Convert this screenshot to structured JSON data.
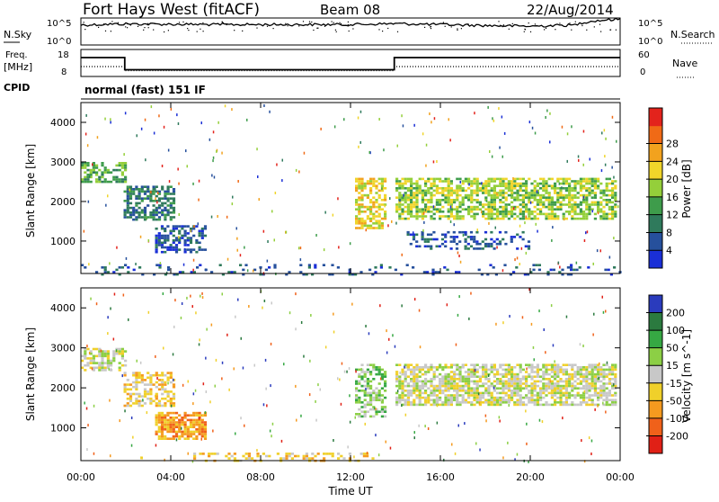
{
  "header": {
    "station": "Fort Hays West (fitACF)",
    "beam": "Beam 08",
    "date": "22/Aug/2014"
  },
  "top_panels": {
    "nsky_label": "N.Sky",
    "nsky_ticks": [
      "10^5",
      "10^0"
    ],
    "nsearch_label": "N.Search",
    "nsearch_ticks": [
      "10^5",
      "10^0"
    ],
    "freq_label": "Freq.",
    "freq_unit": "[MHz]",
    "freq_ticks": [
      "18",
      "8"
    ],
    "nave_label": "Nave",
    "nave_ticks": [
      "60",
      "0"
    ],
    "cpid_label": "CPID",
    "cpid_value": "normal (fast) 151 IF"
  },
  "panels": {
    "power_ylabel": "Slant Range [km]",
    "velocity_ylabel": "Slant Range [km]",
    "y_ticks": [
      "1000",
      "2000",
      "3000",
      "4000"
    ],
    "x_ticks": [
      "00:00",
      "04:00",
      "08:00",
      "12:00",
      "16:00",
      "20:00",
      "00:00"
    ],
    "xlabel": "Time UT"
  },
  "colorbars": {
    "power": {
      "label": "Power [dB]",
      "ticks": [
        "4",
        "8",
        "12",
        "16",
        "20",
        "24",
        "28"
      ],
      "colors": [
        "#1a2fd6",
        "#26509c",
        "#2f7a5c",
        "#3e9c4b",
        "#94cf3a",
        "#f0d52a",
        "#f2a21e",
        "#f06a16",
        "#e3231c"
      ]
    },
    "velocity": {
      "label": "Velocity [m s^-1]",
      "ticks": [
        "200",
        "100",
        "50",
        "15",
        "-15",
        "-50",
        "-100",
        "-200"
      ],
      "colors": [
        "#2a3bbd",
        "#2b7a3f",
        "#36a843",
        "#8ccf45",
        "#c8c8c8",
        "#f0d02a",
        "#f59a1f",
        "#f0611a",
        "#e02016"
      ]
    }
  },
  "chart_data": [
    {
      "type": "line",
      "name": "N.Sky / N.Search",
      "x_range_hours": [
        0,
        24
      ],
      "y_scale": "log",
      "ylim": [
        1,
        100000
      ],
      "x": [
        0,
        2,
        4,
        6,
        8,
        10,
        12,
        14,
        16,
        18,
        20,
        22,
        24
      ],
      "y": [
        5000,
        8000,
        7000,
        6000,
        6000,
        6000,
        6000,
        9000,
        6000,
        4000,
        3000,
        5000,
        60000
      ]
    },
    {
      "type": "line",
      "name": "Freq. / Nave",
      "x_range_hours": [
        0,
        24
      ],
      "freq_ylim": [
        8,
        18
      ],
      "freq_steps": [
        {
          "start": 0,
          "end": 1.95,
          "mhz": 15
        },
        {
          "start": 1.95,
          "end": 13.95,
          "mhz": 10.5
        },
        {
          "start": 13.95,
          "end": 24,
          "mhz": 15
        }
      ],
      "nave_ylim": [
        0,
        60
      ],
      "nave_steps": [
        {
          "start": 0,
          "end": 1.95,
          "value": 22
        },
        {
          "start": 1.95,
          "end": 13.95,
          "value": 13
        },
        {
          "start": 13.95,
          "end": 24,
          "value": 22
        }
      ]
    },
    {
      "type": "heatmap",
      "name": "Power",
      "x_range_hours": [
        0,
        24
      ],
      "ylim_km": [
        180,
        4500
      ],
      "regions": [
        {
          "t0": 0.0,
          "t1": 1.95,
          "r0": 2500,
          "r1": 3000,
          "level": 3,
          "density": 0.55
        },
        {
          "t0": 1.9,
          "t1": 4.2,
          "r0": 1550,
          "r1": 2400,
          "level": 2,
          "density": 0.6
        },
        {
          "t0": 3.3,
          "t1": 5.6,
          "r0": 700,
          "r1": 1400,
          "level": 1,
          "density": 0.55
        },
        {
          "t0": 12.2,
          "t1": 13.6,
          "r0": 1300,
          "r1": 2600,
          "level": 5,
          "density": 0.6
        },
        {
          "t0": 14.0,
          "t1": 23.8,
          "r0": 1550,
          "r1": 2600,
          "level": 4,
          "density": 0.65
        },
        {
          "t0": 14.5,
          "t1": 20.0,
          "r0": 800,
          "r1": 1250,
          "level": 1,
          "density": 0.3
        },
        {
          "t0": 0.0,
          "t1": 24.0,
          "r0": 180,
          "r1": 420,
          "level": 1,
          "density": 0.12
        }
      ]
    },
    {
      "type": "heatmap",
      "name": "Velocity",
      "x_range_hours": [
        0,
        24
      ],
      "ylim_km": [
        180,
        4500
      ],
      "regions": [
        {
          "t0": 0.0,
          "t1": 1.95,
          "r0": 2450,
          "r1": 3000,
          "level": 4,
          "density": 0.5
        },
        {
          "t0": 1.9,
          "t1": 4.2,
          "r0": 1550,
          "r1": 2400,
          "level": 5,
          "density": 0.5
        },
        {
          "t0": 3.3,
          "t1": 5.6,
          "r0": 700,
          "r1": 1400,
          "level": 6,
          "density": 0.75
        },
        {
          "t0": 12.2,
          "t1": 13.6,
          "r0": 1300,
          "r1": 2600,
          "level": 3,
          "density": 0.55
        },
        {
          "t0": 14.0,
          "t1": 23.8,
          "r0": 1600,
          "r1": 2600,
          "level": 4,
          "density": 0.7
        },
        {
          "t0": 5.0,
          "t1": 13.0,
          "r0": 180,
          "r1": 380,
          "level": 5,
          "density": 0.35
        }
      ]
    }
  ]
}
